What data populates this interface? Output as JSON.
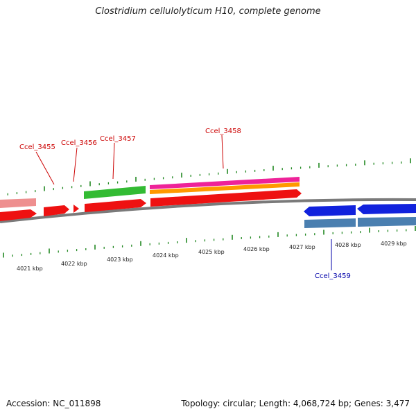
{
  "title": "Clostridium cellulolyticum H10, complete genome",
  "footer": {
    "accession": "Accession: NC_011898",
    "summary": "Topology: circular; Length: 4,068,724 bp; Genes: 3,477"
  },
  "scale": {
    "unit": "kbp",
    "labels": [
      "4021 kbp",
      "4022 kbp",
      "4023 kbp",
      "4024 kbp",
      "4025 kbp",
      "4026 kbp",
      "4027 kbp",
      "4028 kbp",
      "4029 kbp"
    ]
  },
  "gene_labels": [
    "Ccel_3455",
    "Ccel_3456",
    "Ccel_3457",
    "Ccel_3458",
    "Ccel_3459"
  ],
  "colors": {
    "gene_red": "#ee1111",
    "gene_pink_faded": "#ee8f8f",
    "gene_green": "#33bb33",
    "gene_magenta": "#ee2299",
    "gene_orange": "#ff9900",
    "gene_blue": "#1122dd",
    "gene_steel": "#4a7fb0",
    "tick_green": "#228822",
    "label_red": "#cc0000",
    "label_blue": "#0000aa",
    "backbone": "#777777"
  }
}
